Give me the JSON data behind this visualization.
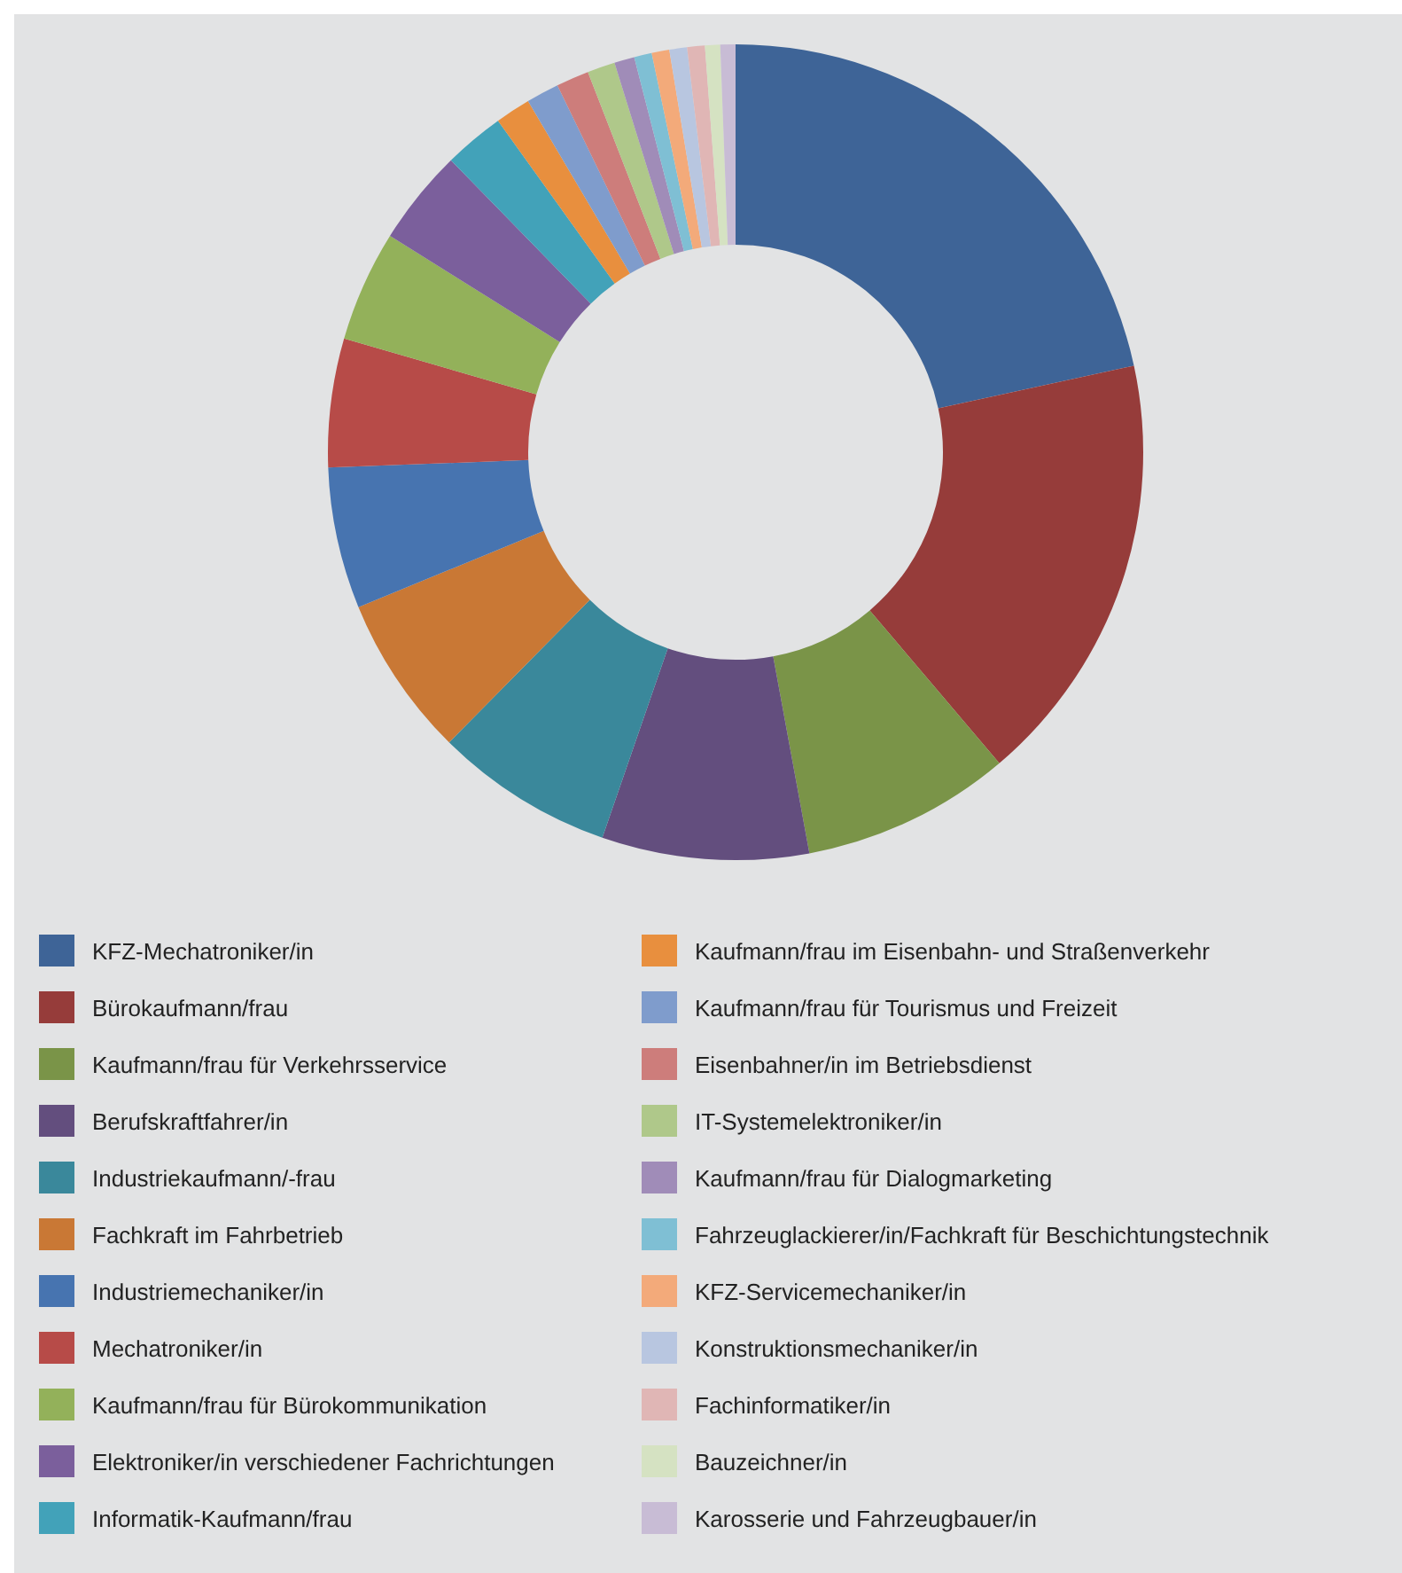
{
  "chart_data": {
    "type": "donut",
    "categories": [
      "KFZ-Mechatroniker/in",
      "Bürokaufmann/frau",
      "Kaufmann/frau für Verkehrsservice",
      "Berufskraftfahrer/in",
      "Industriekaufmann/-frau",
      "Fachkraft im Fahrbetrieb",
      "Industriemechaniker/in",
      "Mechatroniker/in",
      "Kaufmann/frau für Bürokommunikation",
      "Elektroniker/in verschiedener Fachrichtungen",
      "Informatik-Kaufmann/frau",
      "Kaufmann/frau im Eisenbahn- und Straßenverkehr",
      "Kaufmann/frau für Tourismus und Freizeit",
      "Eisenbahner/in im Betriebsdienst",
      "IT-Systemelektroniker/in",
      "Kaufmann/frau für Dialogmarketing",
      "Fahrzeuglackierer/in/Fachkraft für Beschichtungstechnik",
      "KFZ-Servicemechaniker/in",
      "Konstruktionsmechaniker/in",
      "Fachinformatiker/in",
      "Bauzeichner/in",
      "Karosserie und Fahrzeugbauer/in"
    ],
    "values": [
      21.6,
      17.2,
      8.3,
      8.2,
      7.1,
      6.4,
      5.6,
      5.1,
      4.4,
      3.8,
      2.4,
      1.4,
      1.3,
      1.3,
      1.1,
      0.8,
      0.7,
      0.7,
      0.7,
      0.7,
      0.6,
      0.6
    ],
    "colors": [
      "#3e6497",
      "#963c3a",
      "#7a9448",
      "#634e7e",
      "#3a889b",
      "#c97835",
      "#4774b0",
      "#b74b48",
      "#93b15a",
      "#7b5f9c",
      "#42a2b9",
      "#e88f3e",
      "#7f9ccc",
      "#cd7d7b",
      "#afc88a",
      "#a08cb8",
      "#7fbfd4",
      "#f3aa7a",
      "#b8c6e0",
      "#e0b6b5",
      "#d5e2c2",
      "#c8bcd5"
    ],
    "legend": "bottom"
  }
}
